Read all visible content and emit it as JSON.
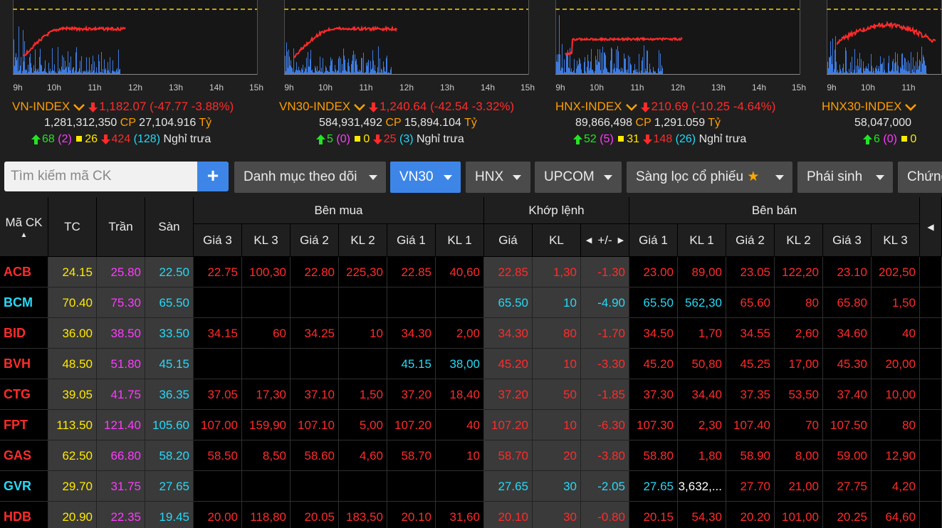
{
  "hours": [
    "9h",
    "10h",
    "11h",
    "12h",
    "13h",
    "14h",
    "15h"
  ],
  "indices": [
    {
      "name": "VN-INDEX",
      "value": "1,182.07",
      "change": "(-47.77 -3.88%)",
      "volume": "1,281,312,350",
      "cp_label": "CP",
      "value_traded": "27,104.916",
      "unit": "Tỷ",
      "up": "68",
      "up_ceil": "(2)",
      "ref": "26",
      "down": "424",
      "down_floor": "(128)",
      "status": "Nghỉ trưa"
    },
    {
      "name": "VN30-INDEX",
      "value": "1,240.64",
      "change": "(-42.54 -3.32%)",
      "volume": "584,931,492",
      "cp_label": "CP",
      "value_traded": "15,894.104",
      "unit": "Tỷ",
      "up": "5",
      "up_ceil": "(0)",
      "ref": "0",
      "down": "25",
      "down_floor": "(3)",
      "status": "Nghỉ trưa"
    },
    {
      "name": "HNX-INDEX",
      "value": "210.69",
      "change": "(-10.25 -4.64%)",
      "volume": "89,866,498",
      "cp_label": "CP",
      "value_traded": "1,291.059",
      "unit": "Tỷ",
      "up": "52",
      "up_ceil": "(5)",
      "ref": "31",
      "down": "148",
      "down_floor": "(26)",
      "status": "Nghỉ trưa"
    },
    {
      "name": "HNX30-INDEX",
      "value": "",
      "change": "",
      "volume": "58,047,000",
      "cp_label": "",
      "value_traded": "",
      "unit": "",
      "up": "6",
      "up_ceil": "(0)",
      "ref": "0",
      "down": "",
      "down_floor": "",
      "status": ""
    }
  ],
  "toolbar": {
    "search_placeholder": "Tìm kiếm mã CK",
    "add_label": "+",
    "watchlist": "Danh mục theo dõi",
    "vn30": "VN30",
    "hnx": "HNX",
    "upcom": "UPCOM",
    "screener": "Sàng lọc cổ phiếu",
    "derivatives": "Phái sinh",
    "cw": "Chứng"
  },
  "table": {
    "group_headers": {
      "buy": "Bên mua",
      "match": "Khớp lệnh",
      "sell": "Bên bán"
    },
    "headers": {
      "symbol": "Mã CK",
      "ref": "TC",
      "ceil": "Trần",
      "floor": "Sàn",
      "bp3": "Giá 3",
      "bv3": "KL 3",
      "bp2": "Giá 2",
      "bv2": "KL 2",
      "bp1": "Giá 1",
      "bv1": "KL 1",
      "mp": "Giá",
      "mv": "KL",
      "chg": "+/-",
      "sp1": "Giá 1",
      "sv1": "KL 1",
      "sp2": "Giá 2",
      "sv2": "KL 2",
      "sp3": "Giá 3",
      "sv3": "KL 3"
    },
    "colors": {
      "red": "#ff2b2b",
      "cyan": "#26d9f7",
      "yellow": "#ffe900",
      "purple": "#ff3bff"
    },
    "rows": [
      {
        "sym": "ACB",
        "ref": "24.15",
        "ceil": "25.80",
        "floor": "22.50",
        "bp3": "22.75",
        "bv3": "100,30",
        "bp2": "22.80",
        "bv2": "225,30",
        "bp1": "22.85",
        "bv1": "40,60",
        "mp": "22.85",
        "mv": "1,30",
        "chg": "-1.30",
        "sp1": "23.00",
        "sv1": "89,00",
        "sp2": "23.05",
        "sv2": "122,20",
        "sp3": "23.10",
        "sv3": "202,50",
        "c": "red",
        "bc": "red",
        "mc": "red",
        "sc1": "red",
        "sc2": "red",
        "sc3": "red"
      },
      {
        "sym": "BCM",
        "ref": "70.40",
        "ceil": "75.30",
        "floor": "65.50",
        "bp3": "",
        "bv3": "",
        "bp2": "",
        "bv2": "",
        "bp1": "",
        "bv1": "",
        "mp": "65.50",
        "mv": "10",
        "chg": "-4.90",
        "sp1": "65.50",
        "sv1": "562,30",
        "sp2": "65.60",
        "sv2": "80",
        "sp3": "65.80",
        "sv3": "1,50",
        "c": "cyan",
        "bc": "red",
        "mc": "cyan",
        "sc1": "cyan",
        "sc2": "red",
        "sc3": "red"
      },
      {
        "sym": "BID",
        "ref": "36.00",
        "ceil": "38.50",
        "floor": "33.50",
        "bp3": "34.15",
        "bv3": "60",
        "bp2": "34.25",
        "bv2": "10",
        "bp1": "34.30",
        "bv1": "2,00",
        "mp": "34.30",
        "mv": "80",
        "chg": "-1.70",
        "sp1": "34.50",
        "sv1": "1,70",
        "sp2": "34.55",
        "sv2": "2,60",
        "sp3": "34.60",
        "sv3": "40",
        "c": "red",
        "bc": "red",
        "mc": "red",
        "sc1": "red",
        "sc2": "red",
        "sc3": "red"
      },
      {
        "sym": "BVH",
        "ref": "48.50",
        "ceil": "51.80",
        "floor": "45.15",
        "bp3": "",
        "bv3": "",
        "bp2": "",
        "bv2": "",
        "bp1": "45.15",
        "bv1": "38,00",
        "mp": "45.20",
        "mv": "10",
        "chg": "-3.30",
        "sp1": "45.20",
        "sv1": "50,80",
        "sp2": "45.25",
        "sv2": "17,00",
        "sp3": "45.30",
        "sv3": "20,00",
        "c": "red",
        "bc": "cyan",
        "mc": "red",
        "sc1": "red",
        "sc2": "red",
        "sc3": "red"
      },
      {
        "sym": "CTG",
        "ref": "39.05",
        "ceil": "41.75",
        "floor": "36.35",
        "bp3": "37.05",
        "bv3": "17,30",
        "bp2": "37.10",
        "bv2": "1,50",
        "bp1": "37.20",
        "bv1": "18,40",
        "mp": "37.20",
        "mv": "50",
        "chg": "-1.85",
        "sp1": "37.30",
        "sv1": "34,40",
        "sp2": "37.35",
        "sv2": "53,50",
        "sp3": "37.40",
        "sv3": "10,00",
        "c": "red",
        "bc": "red",
        "mc": "red",
        "sc1": "red",
        "sc2": "red",
        "sc3": "red"
      },
      {
        "sym": "FPT",
        "ref": "113.50",
        "ceil": "121.40",
        "floor": "105.60",
        "bp3": "107.00",
        "bv3": "159,90",
        "bp2": "107.10",
        "bv2": "5,00",
        "bp1": "107.20",
        "bv1": "40",
        "mp": "107.20",
        "mv": "10",
        "chg": "-6.30",
        "sp1": "107.30",
        "sv1": "2,30",
        "sp2": "107.40",
        "sv2": "70",
        "sp3": "107.50",
        "sv3": "80",
        "c": "red",
        "bc": "red",
        "mc": "red",
        "sc1": "red",
        "sc2": "red",
        "sc3": "red"
      },
      {
        "sym": "GAS",
        "ref": "62.50",
        "ceil": "66.80",
        "floor": "58.20",
        "bp3": "58.50",
        "bv3": "8,50",
        "bp2": "58.60",
        "bv2": "4,60",
        "bp1": "58.70",
        "bv1": "10",
        "mp": "58.70",
        "mv": "20",
        "chg": "-3.80",
        "sp1": "58.80",
        "sv1": "1,80",
        "sp2": "58.90",
        "sv2": "8,00",
        "sp3": "59.00",
        "sv3": "12,90",
        "c": "red",
        "bc": "red",
        "mc": "red",
        "sc1": "red",
        "sc2": "red",
        "sc3": "red"
      },
      {
        "sym": "GVR",
        "ref": "29.70",
        "ceil": "31.75",
        "floor": "27.65",
        "bp3": "",
        "bv3": "",
        "bp2": "",
        "bv2": "",
        "bp1": "",
        "bv1": "",
        "mp": "27.65",
        "mv": "30",
        "chg": "-2.05",
        "sp1": "27.65",
        "sv1": "3,632,...",
        "sp2": "27.70",
        "sv2": "21,00",
        "sp3": "27.75",
        "sv3": "4,20",
        "c": "cyan",
        "bc": "red",
        "mc": "cyan",
        "sc1": "cyan",
        "sc2": "red",
        "sc3": "red"
      },
      {
        "sym": "HDB",
        "ref": "20.90",
        "ceil": "22.35",
        "floor": "19.45",
        "bp3": "20.00",
        "bv3": "118,80",
        "bp2": "20.05",
        "bv2": "183,50",
        "bp1": "20.10",
        "bv1": "31,60",
        "mp": "20.10",
        "mv": "30",
        "chg": "-0.80",
        "sp1": "20.15",
        "sv1": "54,30",
        "sp2": "20.20",
        "sv2": "101,00",
        "sp3": "20.25",
        "sv3": "64,60",
        "c": "red",
        "bc": "red",
        "mc": "red",
        "sc1": "red",
        "sc2": "red",
        "sc3": "red"
      }
    ]
  }
}
